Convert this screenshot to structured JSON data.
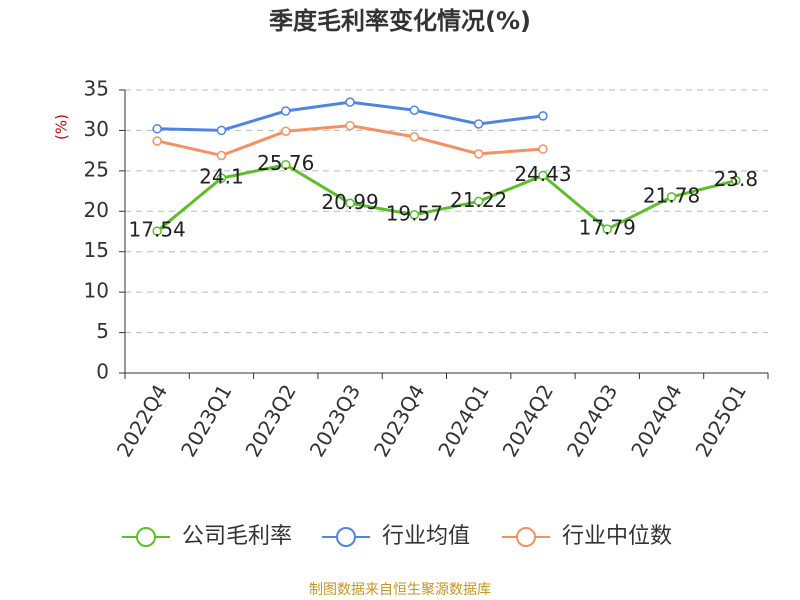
{
  "chart_data": {
    "type": "line",
    "title": "季度毛利率变化情况(%)",
    "y_label": "(%)",
    "source": "制图数据来自恒生聚源数据库",
    "categories": [
      "2022Q4",
      "2023Q1",
      "2023Q2",
      "2023Q3",
      "2023Q4",
      "2024Q1",
      "2024Q2",
      "2024Q3",
      "2024Q4",
      "2025Q1"
    ],
    "series": [
      {
        "name": "公司毛利率",
        "color": "#5cbf2a",
        "values": [
          17.54,
          24.1,
          25.76,
          20.99,
          19.57,
          21.22,
          24.43,
          17.79,
          21.78,
          23.8
        ],
        "show_labels": true
      },
      {
        "name": "行业均值",
        "color": "#4f84e0",
        "values": [
          30.2,
          30.0,
          32.4,
          33.5,
          32.5,
          30.8,
          31.8,
          null,
          null,
          null
        ]
      },
      {
        "name": "行业中位数",
        "color": "#f59063",
        "values": [
          28.7,
          26.9,
          29.9,
          30.6,
          29.2,
          27.1,
          27.7,
          null,
          null,
          null
        ]
      }
    ],
    "ylim": [
      0,
      35
    ],
    "yticks": [
      0,
      5,
      10,
      15,
      20,
      25,
      30,
      35
    ],
    "grid": true
  }
}
